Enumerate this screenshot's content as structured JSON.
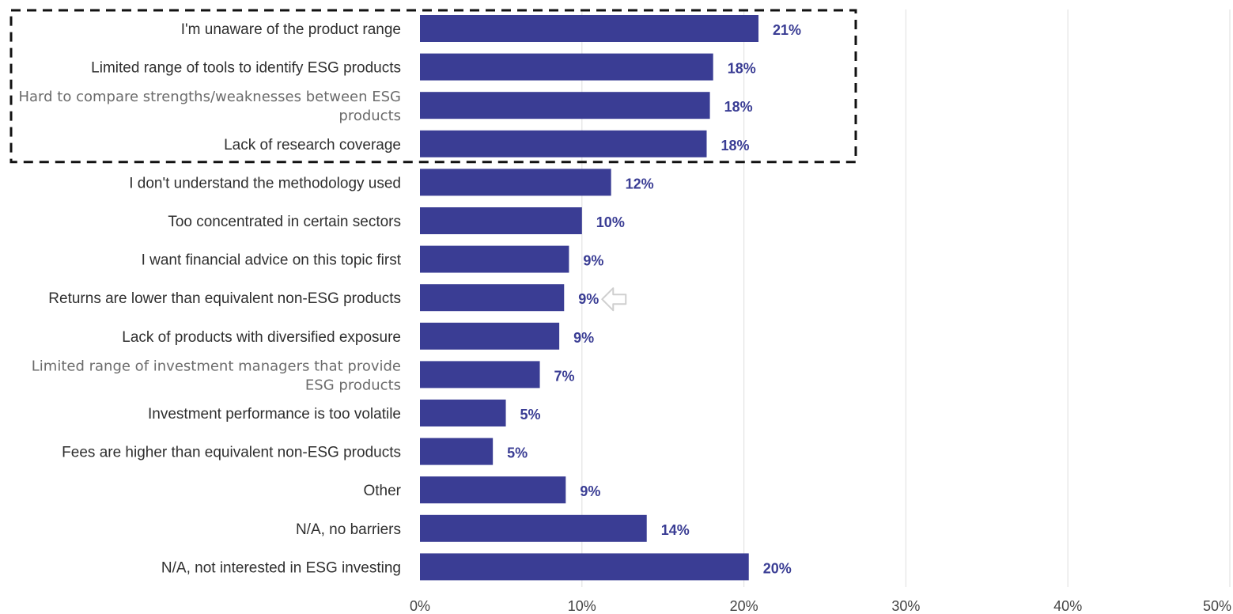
{
  "chart_data": {
    "type": "bar",
    "orientation": "horizontal",
    "categories": [
      "I'm unaware of the product range",
      "Limited range of tools to identify ESG products",
      "Hard to compare strengths/weaknesses between ESG products",
      "Lack of research coverage",
      "I don't understand the methodology used",
      "Too concentrated in certain sectors",
      "I want financial advice on this topic first",
      "Returns are lower than equivalent non-ESG products",
      "Lack of products with diversified exposure",
      "Limited range of investment managers that provide ESG products",
      "Investment performance is too volatile",
      "Fees are higher than equivalent non-ESG products",
      "Other",
      "N/A, no barriers",
      "N/A, not interested in ESG investing"
    ],
    "category_lines": [
      [
        "I'm unaware of the product range"
      ],
      [
        "Limited range of tools to identify ESG products"
      ],
      [
        "Hard to compare strengths/weaknesses between ESG",
        "products"
      ],
      [
        "Lack of research coverage"
      ],
      [
        "I don't understand the methodology used"
      ],
      [
        "Too concentrated in certain sectors"
      ],
      [
        "I want financial advice on this topic first"
      ],
      [
        "Returns are lower than equivalent non-ESG products"
      ],
      [
        "Lack of products with diversified exposure"
      ],
      [
        "Limited range of investment managers that provide",
        "ESG products"
      ],
      [
        "Investment performance is too volatile"
      ],
      [
        "Fees are higher than equivalent non-ESG products"
      ],
      [
        "Other"
      ],
      [
        "N/A, no barriers"
      ],
      [
        "N/A, not interested in ESG investing"
      ]
    ],
    "values": [
      21,
      18,
      18,
      18,
      12,
      10,
      9,
      9,
      9,
      7,
      5,
      5,
      9,
      14,
      20
    ],
    "bar_values": [
      20.9,
      18.1,
      17.9,
      17.7,
      11.8,
      10.0,
      9.2,
      8.9,
      8.6,
      7.4,
      5.3,
      4.5,
      9.0,
      14.0,
      20.3
    ],
    "value_labels": [
      "21%",
      "18%",
      "18%",
      "18%",
      "12%",
      "10%",
      "9%",
      "9%",
      "9%",
      "7%",
      "5%",
      "5%",
      "9%",
      "14%",
      "20%"
    ],
    "x_ticks": [
      0,
      10,
      20,
      30,
      40,
      50
    ],
    "x_tick_labels": [
      "0%",
      "10%",
      "20%",
      "30%",
      "40%",
      "50%"
    ],
    "xlim": [
      0,
      50
    ],
    "grid": true,
    "highlight_box": {
      "from_index": 0,
      "to_index": 3,
      "style": "dashed"
    },
    "marker": {
      "type": "arrow-left-outline",
      "category_index": 7
    },
    "colors": {
      "bar": "#3a3d94",
      "data_label": "#3a3d94",
      "grid": "#e3e3e3",
      "highlight_box": "#111111",
      "marker": "#cfcfcf"
    }
  }
}
